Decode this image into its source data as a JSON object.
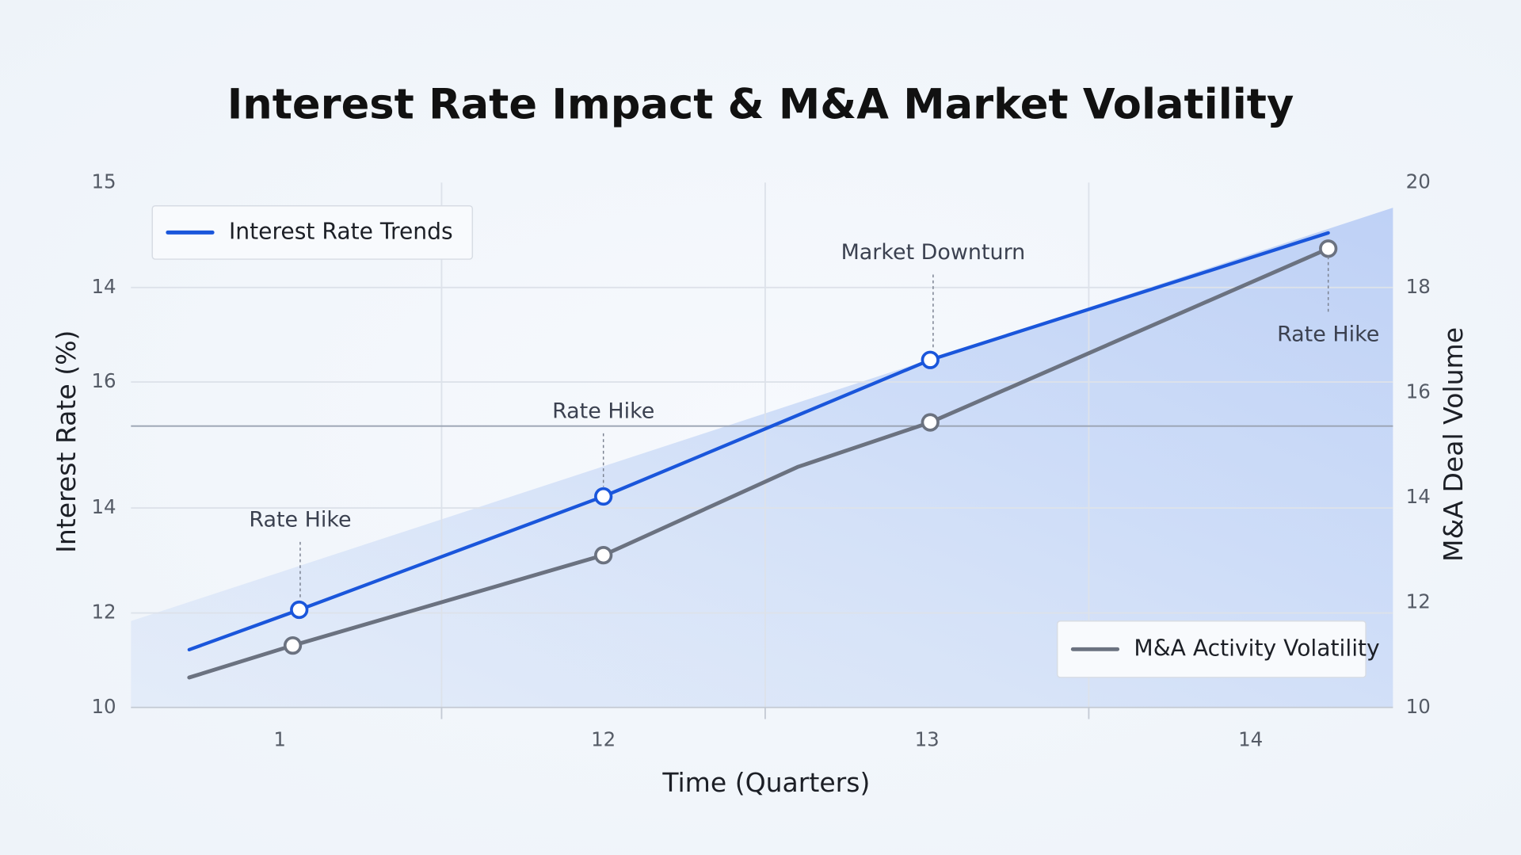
{
  "chart_data": {
    "type": "line",
    "title": "Interest Rate Impact & M&A Market Volatility",
    "x_label": "Time (Quarters)",
    "y_label": "Interest Rate (%)",
    "y2_label": "M&A Deal Volume",
    "xlim": [
      -0.46,
      3.44
    ],
    "xticks": [
      {
        "value": 0,
        "label": "1"
      },
      {
        "value": 1,
        "label": "12"
      },
      {
        "value": 2,
        "label": "13"
      },
      {
        "value": 3,
        "label": "14"
      }
    ],
    "ylim": [
      10,
      15
    ],
    "yticks": [
      15,
      14,
      {
        "value": 13.1,
        "label": "16"
      },
      {
        "value": 11.9,
        "label": "14"
      },
      {
        "value": 10.9,
        "label": "12"
      },
      10
    ],
    "y2lim": [
      10,
      20
    ],
    "y2ticks": [
      20,
      18,
      16,
      14,
      12,
      10
    ],
    "grid": true,
    "series": [
      {
        "name": "Interest Rate Trends",
        "color": "#1a56db",
        "legend": "upper left",
        "x": [
          -0.28,
          0.06,
          1.0,
          2.01,
          3.24
        ],
        "values": [
          10.55,
          10.93,
          12.01,
          13.31,
          14.52
        ]
      },
      {
        "name": "M&A Activity Volatility",
        "color": "#6b7280",
        "legend": "lower right",
        "axis": "y2",
        "x": [
          -0.28,
          0.04,
          1.0,
          1.6,
          2.01,
          3.24
        ],
        "values": [
          10.57,
          11.18,
          12.9,
          14.58,
          15.43,
          18.74
        ]
      }
    ],
    "annotations": [
      "Rate Hike",
      "Rate Hike",
      "Market Downturn",
      "Rate Hike"
    ]
  }
}
